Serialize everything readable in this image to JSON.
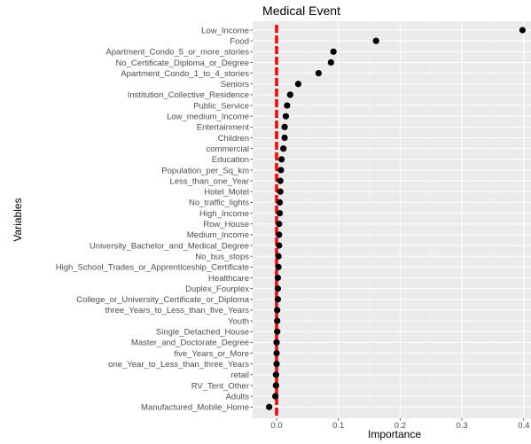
{
  "chart_data": {
    "type": "scatter",
    "title": "Medical Event",
    "xlabel": "Importance",
    "ylabel": "Variables",
    "xlim": [
      -0.02,
      0.405
    ],
    "x_ticks": [
      "0.0",
      "0.1",
      "0.2",
      "0.3",
      "0.4"
    ],
    "x_tick_values": [
      0.0,
      0.1,
      0.2,
      0.3,
      0.4
    ],
    "grid": true,
    "reference_line": {
      "x": 0.0,
      "style": "dashed",
      "color": "#ff0000"
    },
    "point_color": "#000000",
    "panel_color": "#ebebeb",
    "categories": [
      "Low_Income",
      "Food",
      "Apartment_Condo_5_or_more_stories",
      "No_Certificate_Diploma_or_Degree",
      "Apartment_Condo_1_to_4_stories",
      "Seniors",
      "Institution_Collective_Residence",
      "Public_Service",
      "Low_medium_Income",
      "Entertainment",
      "Children",
      "commercial",
      "Education",
      "Population_per_Sq_km",
      "Less_than_one_Year",
      "Hotel_Motel",
      "No_traffic_lights",
      "High_Income",
      "Row_House",
      "Medium_Income",
      "University_Bachelor_and_Medical_Degree",
      "No_bus_stops",
      "High_School_Trades_or_Apprenticeship_Certificate",
      "Healthcare",
      "Duplex_Fourplex",
      "College_or_University_Certificate_or_Diploma",
      "three_Years_to_Less_than_five_Years",
      "Youth",
      "Single_Detached_House",
      "Master_and_Doctorate_Degree",
      "five_Years_or_More",
      "one_Year_to_Less_than_three_Years",
      "retail",
      "RV_Tent_Other",
      "Adults",
      "Manufactured_Mobile_Home"
    ],
    "values": [
      0.398,
      0.161,
      0.092,
      0.088,
      0.068,
      0.035,
      0.022,
      0.017,
      0.015,
      0.013,
      0.013,
      0.011,
      0.008,
      0.007,
      0.006,
      0.006,
      0.005,
      0.005,
      0.004,
      0.004,
      0.004,
      0.003,
      0.003,
      0.002,
      0.002,
      0.002,
      0.001,
      0.001,
      0.001,
      0.0,
      0.0,
      0.0,
      -0.001,
      -0.001,
      -0.002,
      -0.012
    ]
  }
}
